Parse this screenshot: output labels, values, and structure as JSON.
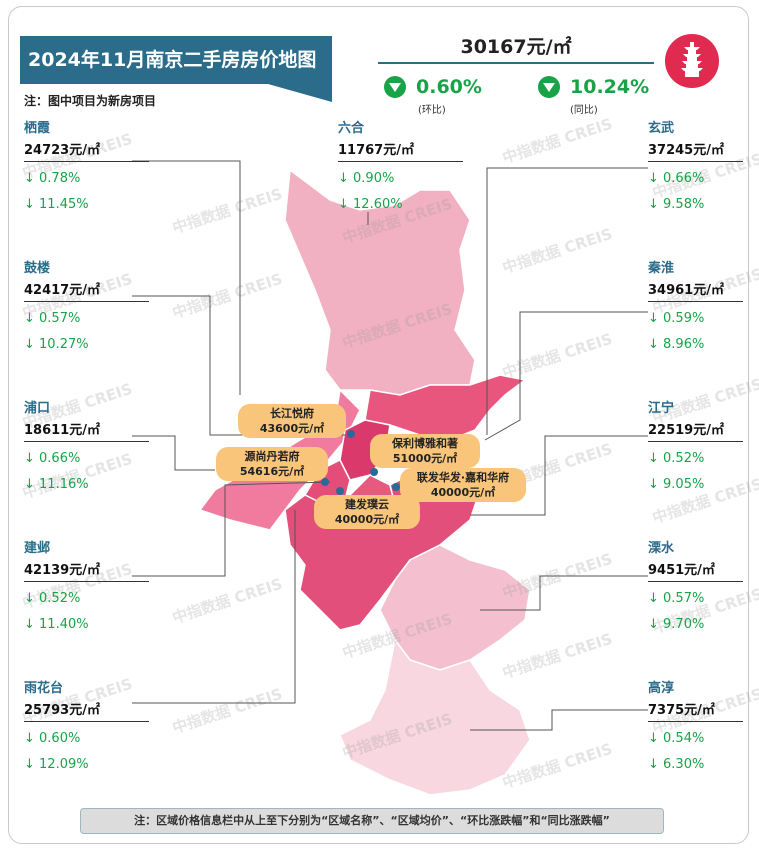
{
  "title": "2024年11月南京二手房房价地图",
  "note": "注：图中项目为新房项目",
  "city": {
    "avg_price": "30167元/㎡",
    "mom": "0.60%",
    "mom_label": "(环比)",
    "yoy": "10.24%",
    "yoy_label": "(同比)"
  },
  "watermark": "中指数据 CREIS",
  "districts": {
    "qixia": {
      "name": "栖霞",
      "price": "24723元/㎡",
      "mom": "↓ 0.78%",
      "yoy": "↓ 11.45%"
    },
    "luhe": {
      "name": "六合",
      "price": "11767元/㎡",
      "mom": "↓ 0.90%",
      "yoy": "↓ 12.60%"
    },
    "xuanwu": {
      "name": "玄武",
      "price": "37245元/㎡",
      "mom": "↓ 0.66%",
      "yoy": "↓ 9.58%"
    },
    "gulou": {
      "name": "鼓楼",
      "price": "42417元/㎡",
      "mom": "↓ 0.57%",
      "yoy": "↓ 10.27%"
    },
    "qinhuai": {
      "name": "秦淮",
      "price": "34961元/㎡",
      "mom": "↓ 0.59%",
      "yoy": "↓ 8.96%"
    },
    "pukou": {
      "name": "浦口",
      "price": "18611元/㎡",
      "mom": "↓ 0.66%",
      "yoy": "↓ 11.16%"
    },
    "jiangning": {
      "name": "江宁",
      "price": "22519元/㎡",
      "mom": "↓ 0.52%",
      "yoy": "↓ 9.05%"
    },
    "jianye": {
      "name": "建邺",
      "price": "42139元/㎡",
      "mom": "↓ 0.52%",
      "yoy": "↓ 11.40%"
    },
    "lishui": {
      "name": "溧水",
      "price": "9451元/㎡",
      "mom": "↓ 0.57%",
      "yoy": "↓ 9.70%"
    },
    "yuhuatai": {
      "name": "雨花台",
      "price": "25793元/㎡",
      "mom": "↓ 0.60%",
      "yoy": "↓ 12.09%"
    },
    "gaochun": {
      "name": "高淳",
      "price": "7375元/㎡",
      "mom": "↓ 0.54%",
      "yoy": "↓ 6.30%"
    }
  },
  "projects": {
    "p1": {
      "name": "长江悦府",
      "price": "43600元/㎡"
    },
    "p2": {
      "name": "源尚丹若府",
      "price": "54616元/㎡"
    },
    "p3": {
      "name": "保利博雅和著",
      "price": "51000元/㎡"
    },
    "p4": {
      "name": "联发华发·嘉和华府",
      "price": "40000元/㎡"
    },
    "p5": {
      "name": "建发璞云",
      "price": "40000元/㎡"
    }
  },
  "footnote": "注：区域价格信息栏中从上至下分别为“区域名称”、“区域均价”、“环比涨跌幅”和“同比涨跌幅”",
  "colors": {
    "accent": "#2b6c8a",
    "down": "#18a349",
    "pill": "#f8c57a"
  }
}
